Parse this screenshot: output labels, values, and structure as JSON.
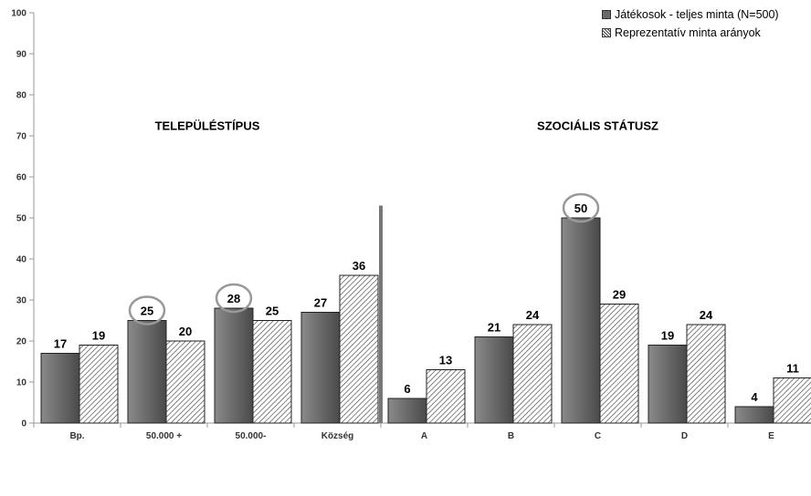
{
  "chart_data": {
    "type": "bar",
    "categories": [
      "Bp.",
      "50.000 +",
      "50.000-",
      "Község",
      "A",
      "B",
      "C",
      "D",
      "E"
    ],
    "series": [
      {
        "name": "Játékosok - teljes minta (N=500)",
        "values": [
          17,
          25,
          28,
          27,
          6,
          21,
          50,
          19,
          4
        ],
        "color": "#6a6a6a"
      },
      {
        "name": "Reprezentatív minta arányok",
        "values": [
          19,
          20,
          25,
          36,
          13,
          24,
          29,
          24,
          11
        ],
        "color": "#ffffff"
      }
    ],
    "sections": [
      {
        "title": "TELEPÜLÉSTÍPUS",
        "categories": [
          0,
          1,
          2,
          3
        ]
      },
      {
        "title": "SZOCIÁLIS STÁTUSZ",
        "categories": [
          4,
          5,
          6,
          7,
          8
        ]
      }
    ],
    "highlighted": [
      {
        "series": 0,
        "category": 1
      },
      {
        "series": 0,
        "category": 2
      },
      {
        "series": 0,
        "category": 6
      }
    ],
    "yticks": [
      0,
      10,
      20,
      30,
      40,
      50,
      60,
      70,
      80,
      90,
      100
    ],
    "ylim": [
      0,
      100
    ],
    "grid": false,
    "legend_position": "top-right",
    "xlabel": "",
    "ylabel": ""
  }
}
